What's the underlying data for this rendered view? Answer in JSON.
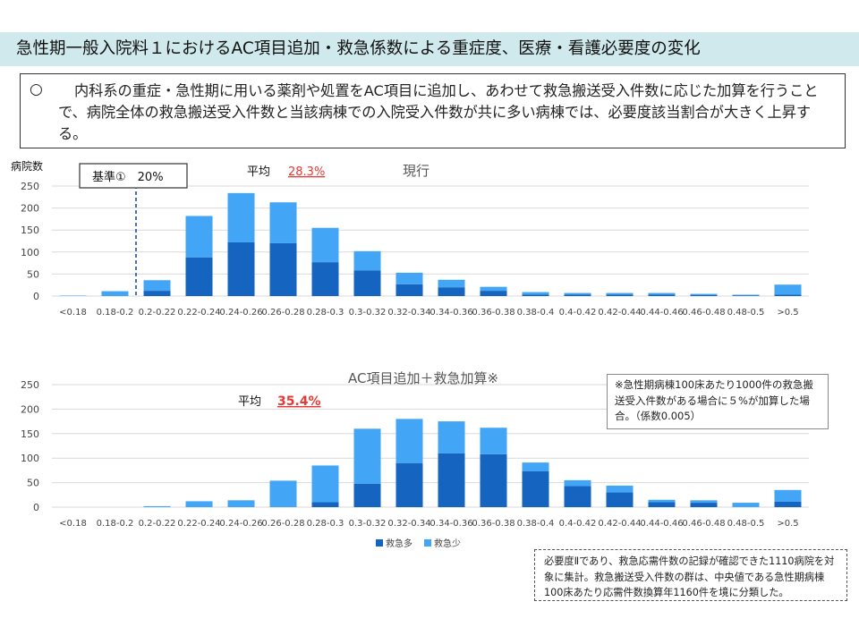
{
  "title": "急性期一般入院料１におけるAC項目追加・救急係数による重症度、医療・看護必要度の変化",
  "intro": {
    "bullet": "○",
    "text": "内科系の重症・急性期に用いる薬剤や処置をAC項目に追加し、あわせて救急搬送受入件数に応じた加算を行うことで、病院全体の救急搬送受入件数と当該病棟での入院受入件数が共に多い病棟では、必要度該当割合が大きく上昇する。"
  },
  "chart1_labels": {
    "ylabel": "病院数",
    "standard": "基準①　20%",
    "avg_label": "平均",
    "avg_value": "28.3%",
    "chart_title": "現行"
  },
  "chart2_labels": {
    "avg_label": "平均",
    "avg_value": "35.4%",
    "chart_title": "AC項目追加＋救急加算※"
  },
  "note1": "※急性期病棟100床あたり1000件の救急搬送受入件数がある場合に５%が加算した場合。（係数0.005）",
  "note2": "必要度Ⅱであり、救急応需件数の記録が確認できた1110病院を対象に集計。救急搬送受入件数の群は、中央値である急性期病棟100床あたり応需件数換算年1160件を境に分類した。",
  "colors": {
    "dark": "#1565c0",
    "light": "#42a5f5",
    "axis_text": "#444444",
    "grid": "#d9d9d9",
    "accent_red": "#e53935",
    "title_bg": "#cfe9ec"
  },
  "chart_data": [
    {
      "type": "bar",
      "stacked": true,
      "title": "現行",
      "ylabel": "病院数",
      "ylim": [
        0,
        250
      ],
      "yticks": [
        0,
        50,
        100,
        150,
        200,
        250
      ],
      "categories": [
        "<0.18",
        "0.18-0.2",
        "0.2-0.22",
        "0.22-0.24",
        "0.24-0.26",
        "0.26-0.28",
        "0.28-0.3",
        "0.3-0.32",
        "0.32-0.34",
        "0.34-0.36",
        "0.36-0.38",
        "0.38-0.4",
        "0.4-0.42",
        "0.42-0.44",
        "0.44-0.46",
        "0.46-0.48",
        "0.48-0.5",
        ">0.5"
      ],
      "series": [
        {
          "name": "救急多",
          "values": [
            0,
            0,
            12,
            88,
            122,
            120,
            77,
            58,
            27,
            20,
            12,
            3,
            3,
            3,
            3,
            2,
            1,
            3
          ]
        },
        {
          "name": "救急少",
          "values": [
            1,
            11,
            24,
            94,
            112,
            93,
            78,
            44,
            26,
            17,
            9,
            6,
            4,
            4,
            4,
            3,
            2,
            23
          ]
        }
      ],
      "reference_line": {
        "x": "0.18-0.2 / 0.2-0.22 boundary",
        "label": "基準①　20%"
      },
      "average": "28.3%"
    },
    {
      "type": "bar",
      "stacked": true,
      "title": "AC項目追加＋救急加算※",
      "ylim": [
        0,
        250
      ],
      "yticks": [
        0,
        50,
        100,
        150,
        200,
        250
      ],
      "categories": [
        "<0.18",
        "0.18-0.2",
        "0.2-0.22",
        "0.22-0.24",
        "0.24-0.26",
        "0.26-0.28",
        "0.28-0.3",
        "0.3-0.32",
        "0.32-0.34",
        "0.34-0.36",
        "0.36-0.38",
        "0.38-0.4",
        "0.4-0.42",
        "0.42-0.44",
        "0.44-0.46",
        "0.46-0.48",
        "0.48-0.5",
        ">0.5"
      ],
      "series": [
        {
          "name": "救急多",
          "values": [
            0,
            0,
            0,
            0,
            0,
            0,
            10,
            48,
            90,
            110,
            108,
            73,
            43,
            30,
            10,
            9,
            0,
            11
          ]
        },
        {
          "name": "救急少",
          "values": [
            0,
            0,
            2,
            12,
            14,
            54,
            75,
            112,
            90,
            65,
            54,
            18,
            12,
            14,
            5,
            5,
            9,
            24
          ]
        }
      ],
      "legend": [
        "救急多",
        "救急少"
      ],
      "average": "35.4%"
    }
  ]
}
